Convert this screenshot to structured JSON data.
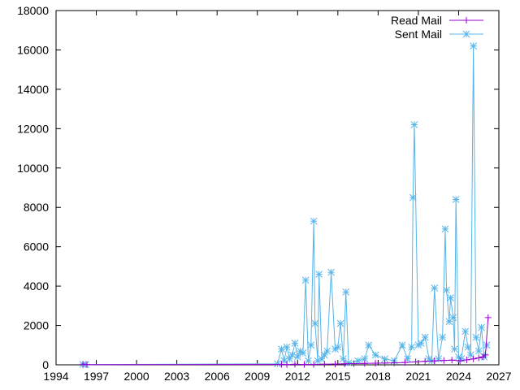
{
  "chart_data": {
    "type": "line",
    "xlim": [
      1994,
      2027
    ],
    "ylim": [
      0,
      18000
    ],
    "xticks": [
      1994,
      1997,
      2000,
      2003,
      2006,
      2009,
      2012,
      2015,
      2018,
      2021,
      2024,
      2027
    ],
    "yticks": [
      0,
      2000,
      4000,
      6000,
      8000,
      10000,
      12000,
      14000,
      16000,
      18000
    ],
    "grid": false,
    "legend_position": "top-right",
    "series": [
      {
        "name": "Read Mail",
        "color": "#9400d3",
        "marker": "plus",
        "points": [
          [
            1996.0,
            30
          ],
          [
            1996.3,
            10
          ],
          [
            2010.8,
            20
          ],
          [
            2011.2,
            10
          ],
          [
            2011.8,
            30
          ],
          [
            2012.5,
            15
          ],
          [
            2013.2,
            20
          ],
          [
            2014.0,
            30
          ],
          [
            2014.8,
            40
          ],
          [
            2015.5,
            50
          ],
          [
            2016.2,
            60
          ],
          [
            2017.0,
            70
          ],
          [
            2017.8,
            80
          ],
          [
            2018.5,
            90
          ],
          [
            2019.2,
            100
          ],
          [
            2020.0,
            120
          ],
          [
            2020.8,
            150
          ],
          [
            2021.5,
            180
          ],
          [
            2022.2,
            200
          ],
          [
            2022.9,
            220
          ],
          [
            2023.5,
            240
          ],
          [
            2024.1,
            200
          ],
          [
            2024.6,
            250
          ],
          [
            2025.1,
            300
          ],
          [
            2025.5,
            350
          ],
          [
            2025.8,
            400
          ],
          [
            2026.0,
            500
          ],
          [
            2026.2,
            2400
          ]
        ]
      },
      {
        "name": "Sent Mail",
        "color": "#56b4e9",
        "marker": "star",
        "points": [
          [
            1996.0,
            20
          ],
          [
            1996.2,
            10
          ],
          [
            2010.5,
            50
          ],
          [
            2010.8,
            800
          ],
          [
            2011.0,
            200
          ],
          [
            2011.2,
            900
          ],
          [
            2011.4,
            300
          ],
          [
            2011.6,
            500
          ],
          [
            2011.8,
            1100
          ],
          [
            2012.0,
            400
          ],
          [
            2012.2,
            700
          ],
          [
            2012.4,
            600
          ],
          [
            2012.6,
            4300
          ],
          [
            2012.8,
            200
          ],
          [
            2013.0,
            1000
          ],
          [
            2013.2,
            7300
          ],
          [
            2013.3,
            2100
          ],
          [
            2013.5,
            200
          ],
          [
            2013.6,
            4600
          ],
          [
            2013.8,
            300
          ],
          [
            2014.0,
            500
          ],
          [
            2014.2,
            700
          ],
          [
            2014.5,
            4700
          ],
          [
            2014.8,
            800
          ],
          [
            2015.0,
            900
          ],
          [
            2015.2,
            2100
          ],
          [
            2015.4,
            300
          ],
          [
            2015.6,
            3700
          ],
          [
            2015.8,
            100
          ],
          [
            2016.5,
            200
          ],
          [
            2017.0,
            300
          ],
          [
            2017.3,
            1000
          ],
          [
            2017.8,
            500
          ],
          [
            2018.5,
            300
          ],
          [
            2019.2,
            200
          ],
          [
            2019.8,
            1000
          ],
          [
            2020.2,
            300
          ],
          [
            2020.5,
            900
          ],
          [
            2020.6,
            8500
          ],
          [
            2020.7,
            12200
          ],
          [
            2021.0,
            1000
          ],
          [
            2021.2,
            1100
          ],
          [
            2021.5,
            1400
          ],
          [
            2021.8,
            300
          ],
          [
            2022.0,
            200
          ],
          [
            2022.2,
            3900
          ],
          [
            2022.5,
            300
          ],
          [
            2022.8,
            1400
          ],
          [
            2023.0,
            6900
          ],
          [
            2023.1,
            3800
          ],
          [
            2023.3,
            2200
          ],
          [
            2023.4,
            3400
          ],
          [
            2023.6,
            2400
          ],
          [
            2023.7,
            800
          ],
          [
            2023.8,
            8400
          ],
          [
            2024.0,
            400
          ],
          [
            2024.2,
            300
          ],
          [
            2024.5,
            1700
          ],
          [
            2024.7,
            900
          ],
          [
            2024.9,
            500
          ],
          [
            2025.1,
            16200
          ],
          [
            2025.3,
            1400
          ],
          [
            2025.5,
            700
          ],
          [
            2025.7,
            1900
          ],
          [
            2025.9,
            400
          ],
          [
            2026.1,
            1000
          ]
        ]
      }
    ]
  }
}
